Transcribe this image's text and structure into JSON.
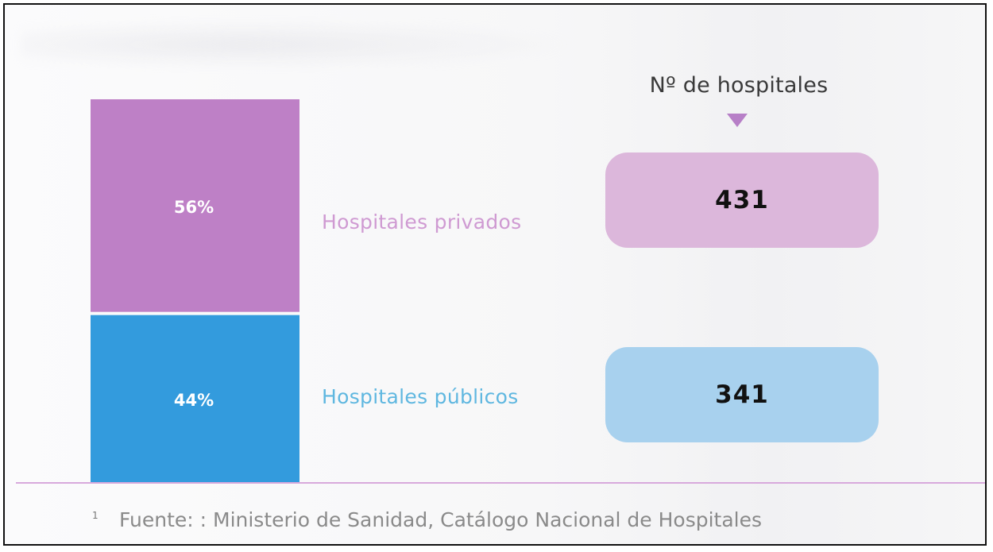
{
  "header": {
    "title": "Nº de hospitales"
  },
  "chart_data": {
    "type": "bar",
    "stacked": true,
    "categories": [
      "Hospitales privados",
      "Hospitales públicos"
    ],
    "series": [
      {
        "name": "Hospitales privados",
        "value": 56,
        "label": "56%",
        "count": 431,
        "color": "#be80c6",
        "box_color": "#dcb7db",
        "label_color": "#cf9ad2"
      },
      {
        "name": "Hospitales públicos",
        "value": 44,
        "label": "44%",
        "count": 341,
        "color": "#339bdd",
        "box_color": "#a8d1ee",
        "label_color": "#5fb7e0"
      }
    ]
  },
  "footnote": {
    "mark": "1",
    "text": "Fuente: : Ministerio de Sanidad, Catálogo Nacional de Hospitales"
  },
  "colors": {
    "baseline": "#d8a9dc",
    "header_arrow": "#b77fc7"
  }
}
